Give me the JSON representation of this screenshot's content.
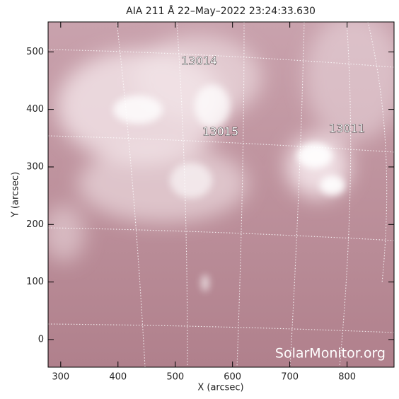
{
  "title": "AIA 211 Å 22–May–2022 23:24:33.630",
  "x_axis": {
    "label": "X (arcsec)",
    "lim": [
      278,
      882
    ],
    "ticks": [
      300,
      400,
      500,
      600,
      700,
      800
    ]
  },
  "y_axis": {
    "label": "Y (arcsec)",
    "lim": [
      -48,
      552
    ],
    "ticks": [
      0,
      100,
      200,
      300,
      400,
      500
    ]
  },
  "regions": [
    {
      "label": "13014",
      "x": 542,
      "y": 483
    },
    {
      "label": "13015",
      "x": 579,
      "y": 360
    },
    {
      "label": "13011",
      "x": 800,
      "y": 366
    }
  ],
  "watermark": "SolarMonitor.org"
}
